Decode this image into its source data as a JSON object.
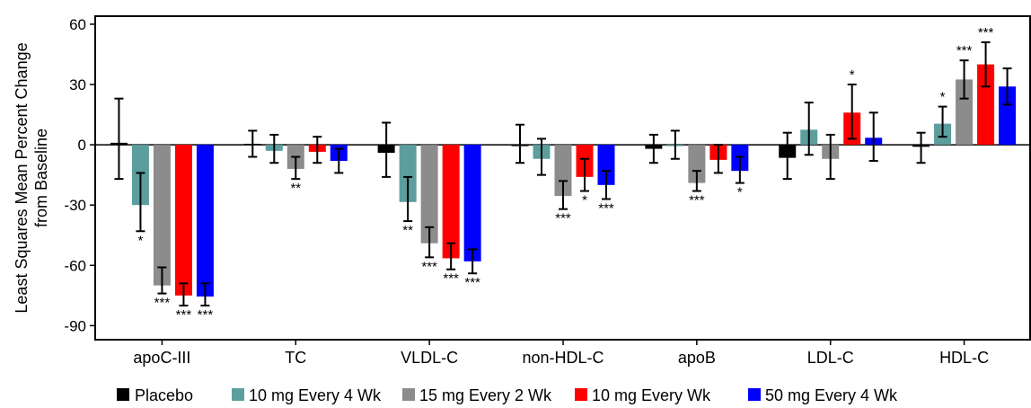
{
  "chart_data": {
    "type": "bar",
    "title": "",
    "ylabel": "Least Squares Mean Percent Change\nfrom Baseline",
    "xlabel": "",
    "ylim": [
      -97,
      64
    ],
    "yticks": [
      60,
      30,
      0,
      -30,
      -60,
      -90
    ],
    "grid": false,
    "legend_position": "bottom",
    "categories": [
      "apoC-III",
      "TC",
      "VLDL-C",
      "non-HDL-C",
      "apoB",
      "LDL-C",
      "HDL-C"
    ],
    "series": [
      {
        "name": "Placebo",
        "color": "#000000",
        "values": [
          1,
          0.5,
          -4,
          0,
          -2,
          -6.5,
          -1
        ],
        "err_low": [
          -17,
          -6,
          -16,
          -9,
          -9,
          -17,
          -9
        ],
        "err_high": [
          23,
          7,
          11,
          10,
          5,
          6,
          6
        ],
        "sig": [
          "",
          "",
          "",
          "",
          "",
          "",
          ""
        ]
      },
      {
        "name": "10 mg Every 4 Wk",
        "color": "#5c9e9e",
        "values": [
          -30,
          -3,
          -28.5,
          -7,
          0,
          7.5,
          10.5
        ],
        "err_low": [
          -43,
          -9,
          -38,
          -15,
          -7,
          -5,
          4
        ],
        "err_high": [
          -14,
          5,
          -16,
          3,
          7,
          21,
          19
        ],
        "sig": [
          "*",
          "",
          "**",
          "",
          "",
          "",
          "*"
        ]
      },
      {
        "name": "15 mg  Every 2 Wk",
        "color": "#8c8c8c",
        "values": [
          -70,
          -12,
          -49,
          -25.5,
          -19,
          -7,
          32.5
        ],
        "err_low": [
          -74,
          -17,
          -56,
          -32,
          -23,
          -17,
          23
        ],
        "err_high": [
          -61,
          -6,
          -41,
          -18,
          -13,
          5,
          42
        ],
        "sig": [
          "***",
          "**",
          "***",
          "***",
          "***",
          "",
          "***"
        ]
      },
      {
        "name": "10 mg Every Wk",
        "color": "#ff0000",
        "values": [
          -75,
          -3.5,
          -56.5,
          -16,
          -7.5,
          16,
          40
        ],
        "err_low": [
          -80,
          -9,
          -62,
          -23,
          -14,
          3,
          29
        ],
        "err_high": [
          -69,
          4,
          -49,
          -7,
          0,
          30,
          51
        ],
        "sig": [
          "***",
          "",
          "***",
          "*",
          "",
          "*",
          "***"
        ]
      },
      {
        "name": "50 mg  Every 4 Wk",
        "color": "#0000ff",
        "values": [
          -75.5,
          -8,
          -58,
          -20,
          -13,
          3.5,
          29
        ],
        "err_low": [
          -80,
          -14,
          -64,
          -27,
          -19,
          -8,
          20
        ],
        "err_high": [
          -69,
          -2,
          -52,
          -13,
          -6,
          16,
          38
        ],
        "sig": [
          "***",
          "",
          "***",
          "***",
          "*",
          "",
          ""
        ]
      }
    ]
  }
}
